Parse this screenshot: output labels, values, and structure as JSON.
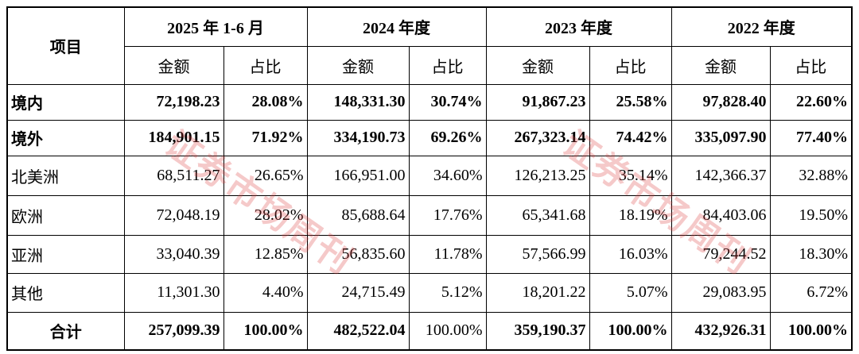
{
  "header": {
    "item": "项目",
    "periods": [
      "2025 年 1-6 月",
      "2024 年度",
      "2023 年度",
      "2022 年度"
    ],
    "columns": [
      "金额",
      "占比"
    ]
  },
  "rows": [
    {
      "label": "境内",
      "values": [
        "72,198.23",
        "28.08%",
        "148,331.30",
        "30.74%",
        "91,867.23",
        "25.58%",
        "97,828.40",
        "22.60%"
      ]
    },
    {
      "label": "境外",
      "values": [
        "184,901.15",
        "71.92%",
        "334,190.73",
        "69.26%",
        "267,323.14",
        "74.42%",
        "335,097.90",
        "77.40%"
      ]
    },
    {
      "label": "北美洲",
      "values": [
        "68,511.27",
        "26.65%",
        "166,951.00",
        "34.60%",
        "126,213.25",
        "35.14%",
        "142,366.37",
        "32.88%"
      ]
    },
    {
      "label": "欧洲",
      "values": [
        "72,048.19",
        "28.02%",
        "85,688.64",
        "17.76%",
        "65,341.68",
        "18.19%",
        "84,403.06",
        "19.50%"
      ]
    },
    {
      "label": "亚洲",
      "values": [
        "33,040.39",
        "12.85%",
        "56,835.60",
        "11.78%",
        "57,566.99",
        "16.03%",
        "79,244.52",
        "18.30%"
      ]
    },
    {
      "label": "其他",
      "values": [
        "11,301.30",
        "4.40%",
        "24,715.49",
        "5.12%",
        "18,201.22",
        "5.07%",
        "29,083.95",
        "6.72%"
      ]
    },
    {
      "label": "合计",
      "values": [
        "257,099.39",
        "100.00%",
        "482,522.04",
        "100.00%",
        "359,190.37",
        "100.00%",
        "432,926.31",
        "100.00%"
      ]
    }
  ],
  "watermark": "证券市场周刊"
}
